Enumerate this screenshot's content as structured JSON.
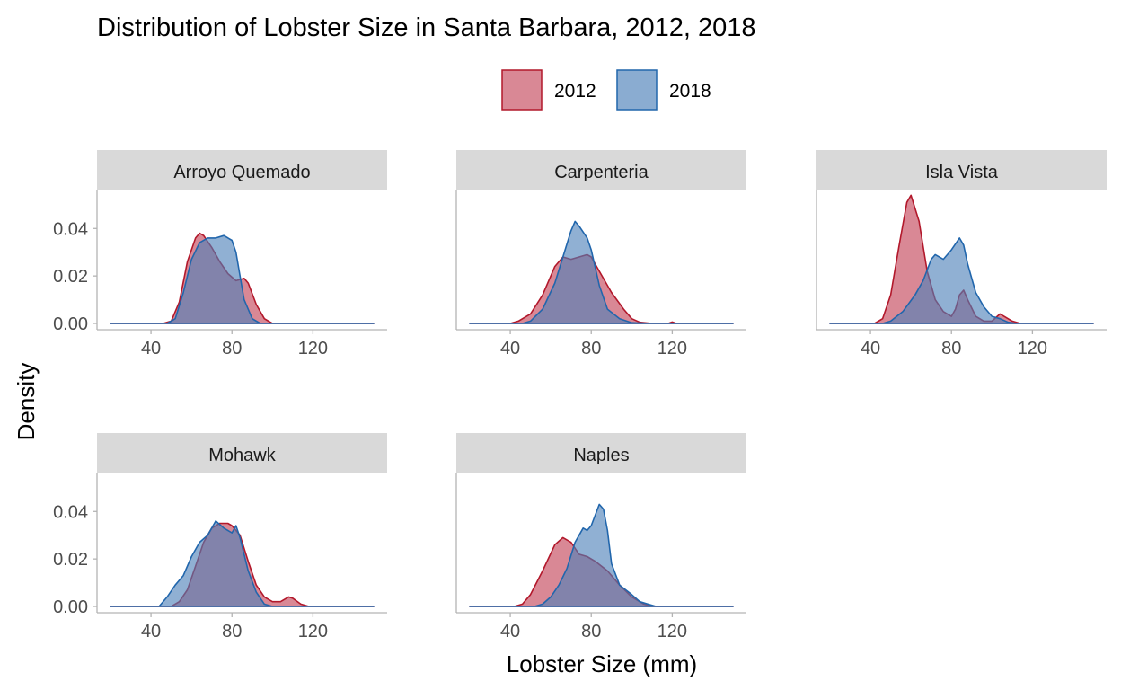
{
  "chart_data": {
    "type": "area",
    "title": "Distribution of Lobster Size in Santa Barbara, 2012, 2018",
    "xlabel": "Lobster Size (mm)",
    "ylabel": "Density",
    "xlim": [
      20,
      150
    ],
    "ylim": [
      0,
      0.056
    ],
    "x_ticks": [
      "40",
      "80",
      "120"
    ],
    "y_ticks": [
      "0.00",
      "0.02",
      "0.04"
    ],
    "legend": {
      "position": "top",
      "entries": [
        "2012",
        "2018"
      ]
    },
    "colors": {
      "2012": {
        "fill": "#c0394f",
        "line": "#b2182b"
      },
      "2018": {
        "fill": "#4c7fb8",
        "line": "#2166ac"
      }
    },
    "panels": [
      {
        "label": "Arroyo Quemado",
        "series": [
          {
            "name": "2012",
            "points": [
              [
                20,
                0
              ],
              [
                46,
                0
              ],
              [
                50,
                0.001
              ],
              [
                54,
                0.009
              ],
              [
                58,
                0.026
              ],
              [
                62,
                0.036
              ],
              [
                64,
                0.038
              ],
              [
                66,
                0.037
              ],
              [
                70,
                0.032
              ],
              [
                74,
                0.026
              ],
              [
                78,
                0.021
              ],
              [
                82,
                0.018
              ],
              [
                86,
                0.019
              ],
              [
                88,
                0.017
              ],
              [
                92,
                0.008
              ],
              [
                96,
                0.002
              ],
              [
                100,
                0
              ],
              [
                150,
                0
              ]
            ]
          },
          {
            "name": "2018",
            "points": [
              [
                20,
                0
              ],
              [
                48,
                0
              ],
              [
                52,
                0.002
              ],
              [
                56,
                0.013
              ],
              [
                60,
                0.027
              ],
              [
                64,
                0.034
              ],
              [
                68,
                0.036
              ],
              [
                72,
                0.036
              ],
              [
                76,
                0.037
              ],
              [
                80,
                0.035
              ],
              [
                82,
                0.03
              ],
              [
                84,
                0.02
              ],
              [
                86,
                0.01
              ],
              [
                90,
                0.002
              ],
              [
                94,
                0
              ],
              [
                150,
                0
              ]
            ]
          }
        ]
      },
      {
        "label": "Carpenteria",
        "series": [
          {
            "name": "2012",
            "points": [
              [
                20,
                0
              ],
              [
                40,
                0
              ],
              [
                44,
                0.001
              ],
              [
                50,
                0.004
              ],
              [
                56,
                0.012
              ],
              [
                62,
                0.024
              ],
              [
                66,
                0.028
              ],
              [
                70,
                0.027
              ],
              [
                74,
                0.028
              ],
              [
                78,
                0.029
              ],
              [
                80,
                0.028
              ],
              [
                84,
                0.022
              ],
              [
                90,
                0.013
              ],
              [
                96,
                0.006
              ],
              [
                100,
                0.002
              ],
              [
                104,
                0.0005
              ],
              [
                110,
                0
              ],
              [
                118,
                0
              ],
              [
                120,
                0.0006
              ],
              [
                122,
                0
              ],
              [
                150,
                0
              ]
            ]
          },
          {
            "name": "2018",
            "points": [
              [
                20,
                0
              ],
              [
                46,
                0
              ],
              [
                50,
                0.001
              ],
              [
                56,
                0.006
              ],
              [
                62,
                0.017
              ],
              [
                66,
                0.028
              ],
              [
                70,
                0.039
              ],
              [
                72,
                0.043
              ],
              [
                74,
                0.041
              ],
              [
                78,
                0.036
              ],
              [
                80,
                0.031
              ],
              [
                84,
                0.016
              ],
              [
                88,
                0.006
              ],
              [
                94,
                0.002
              ],
              [
                100,
                0.0003
              ],
              [
                110,
                0
              ],
              [
                150,
                0
              ]
            ]
          }
        ]
      },
      {
        "label": "Isla Vista",
        "series": [
          {
            "name": "2012",
            "points": [
              [
                20,
                0
              ],
              [
                42,
                0
              ],
              [
                46,
                0.002
              ],
              [
                50,
                0.012
              ],
              [
                54,
                0.032
              ],
              [
                58,
                0.051
              ],
              [
                60,
                0.054
              ],
              [
                64,
                0.043
              ],
              [
                68,
                0.022
              ],
              [
                72,
                0.01
              ],
              [
                76,
                0.005
              ],
              [
                80,
                0.003
              ],
              [
                82,
                0.006
              ],
              [
                84,
                0.012
              ],
              [
                86,
                0.014
              ],
              [
                88,
                0.01
              ],
              [
                92,
                0.003
              ],
              [
                96,
                0.001
              ],
              [
                100,
                0.001
              ],
              [
                102,
                0.0025
              ],
              [
                104,
                0.004
              ],
              [
                106,
                0.003
              ],
              [
                110,
                0.001
              ],
              [
                114,
                0
              ],
              [
                150,
                0
              ]
            ]
          },
          {
            "name": "2018",
            "points": [
              [
                20,
                0
              ],
              [
                46,
                0
              ],
              [
                50,
                0.001
              ],
              [
                56,
                0.005
              ],
              [
                62,
                0.012
              ],
              [
                66,
                0.018
              ],
              [
                70,
                0.027
              ],
              [
                72,
                0.029
              ],
              [
                76,
                0.027
              ],
              [
                80,
                0.031
              ],
              [
                84,
                0.036
              ],
              [
                86,
                0.033
              ],
              [
                88,
                0.025
              ],
              [
                92,
                0.013
              ],
              [
                96,
                0.007
              ],
              [
                100,
                0.003
              ],
              [
                104,
                0.002
              ],
              [
                108,
                0.0005
              ],
              [
                112,
                0
              ],
              [
                150,
                0
              ]
            ]
          }
        ]
      },
      {
        "label": "Mohawk",
        "series": [
          {
            "name": "2012",
            "points": [
              [
                20,
                0
              ],
              [
                50,
                0
              ],
              [
                54,
                0.002
              ],
              [
                58,
                0.007
              ],
              [
                62,
                0.017
              ],
              [
                66,
                0.027
              ],
              [
                70,
                0.033
              ],
              [
                74,
                0.035
              ],
              [
                78,
                0.035
              ],
              [
                80,
                0.034
              ],
              [
                84,
                0.03
              ],
              [
                88,
                0.019
              ],
              [
                92,
                0.009
              ],
              [
                96,
                0.004
              ],
              [
                100,
                0.002
              ],
              [
                104,
                0.002
              ],
              [
                108,
                0.004
              ],
              [
                110,
                0.0035
              ],
              [
                114,
                0.001
              ],
              [
                118,
                0
              ],
              [
                150,
                0
              ]
            ]
          },
          {
            "name": "2018",
            "points": [
              [
                20,
                0
              ],
              [
                44,
                0
              ],
              [
                48,
                0.004
              ],
              [
                52,
                0.009
              ],
              [
                56,
                0.013
              ],
              [
                60,
                0.021
              ],
              [
                64,
                0.027
              ],
              [
                68,
                0.03
              ],
              [
                72,
                0.036
              ],
              [
                76,
                0.033
              ],
              [
                80,
                0.031
              ],
              [
                82,
                0.034
              ],
              [
                84,
                0.029
              ],
              [
                88,
                0.015
              ],
              [
                92,
                0.006
              ],
              [
                96,
                0.001
              ],
              [
                100,
                0
              ],
              [
                150,
                0
              ]
            ]
          }
        ]
      },
      {
        "label": "Naples",
        "series": [
          {
            "name": "2012",
            "points": [
              [
                20,
                0
              ],
              [
                42,
                0
              ],
              [
                46,
                0.001
              ],
              [
                50,
                0.005
              ],
              [
                56,
                0.015
              ],
              [
                62,
                0.026
              ],
              [
                66,
                0.029
              ],
              [
                70,
                0.027
              ],
              [
                74,
                0.022
              ],
              [
                78,
                0.021
              ],
              [
                82,
                0.019
              ],
              [
                88,
                0.015
              ],
              [
                94,
                0.009
              ],
              [
                100,
                0.004
              ],
              [
                106,
                0.001
              ],
              [
                110,
                0
              ],
              [
                150,
                0
              ]
            ]
          },
          {
            "name": "2018",
            "points": [
              [
                20,
                0
              ],
              [
                52,
                0
              ],
              [
                56,
                0.001
              ],
              [
                60,
                0.004
              ],
              [
                64,
                0.009
              ],
              [
                68,
                0.016
              ],
              [
                72,
                0.027
              ],
              [
                76,
                0.033
              ],
              [
                78,
                0.032
              ],
              [
                80,
                0.034
              ],
              [
                84,
                0.043
              ],
              [
                86,
                0.041
              ],
              [
                88,
                0.032
              ],
              [
                90,
                0.018
              ],
              [
                94,
                0.009
              ],
              [
                100,
                0.005
              ],
              [
                104,
                0.002
              ],
              [
                108,
                0.001
              ],
              [
                112,
                0
              ],
              [
                150,
                0
              ]
            ]
          }
        ]
      }
    ]
  }
}
